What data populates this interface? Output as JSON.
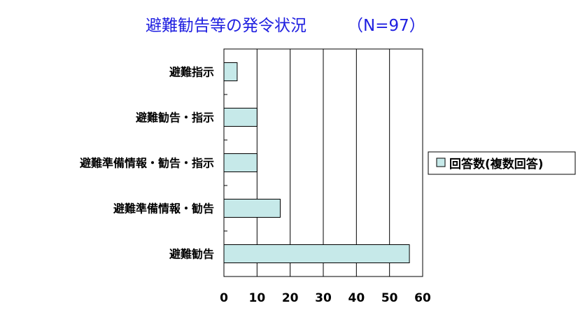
{
  "chart_data": {
    "type": "bar",
    "orientation": "horizontal",
    "title": "避難勧告等の発令状況",
    "subtitle": "（N=97）",
    "categories": [
      "避難指示",
      "避難勧告・指示",
      "避難準備情報・勧告・指示",
      "避難準備情報・勧告",
      "避難勧告"
    ],
    "series": [
      {
        "name": "回答数(複数回答)",
        "values": [
          4,
          10,
          10,
          17,
          56
        ],
        "color": "#c6e9e9"
      }
    ],
    "xlim": [
      0,
      60
    ],
    "x_ticks": [
      0,
      10,
      20,
      30,
      40,
      50,
      60
    ],
    "xlabel": "",
    "ylabel": "",
    "grid": "vertical",
    "legend_position": "right"
  },
  "colors": {
    "title": "#1f1fe0",
    "bar_fill": "#c6e9e9",
    "bar_stroke": "#000000",
    "axis": "#000000"
  }
}
